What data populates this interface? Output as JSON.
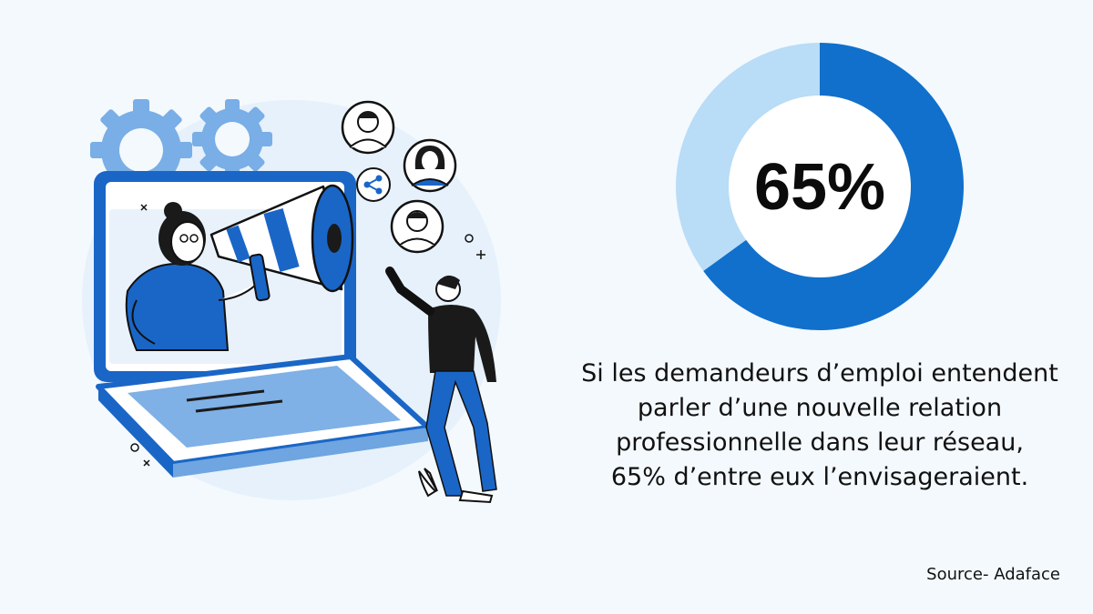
{
  "chart_data": {
    "type": "pie",
    "categories": [
      "65%",
      ""
    ],
    "values": [
      65,
      35
    ],
    "center_label": "65%",
    "colors": [
      "#1070cc",
      "#b9dcf7"
    ],
    "hole": "donut"
  },
  "caption": {
    "lines": [
      "Si  les demandeurs d’emploi entendent",
      "parler d’une nouvelle relation",
      "professionnelle dans leur réseau,",
      "65% d’entre eux l’envisageraient."
    ]
  },
  "source": "Source- Adaface",
  "colors": {
    "background": "#f4f9fd",
    "primary_blue": "#1070cc",
    "light_blue": "#b9dcf7",
    "mid_blue": "#6fa5e0"
  },
  "illustration": {
    "icons": [
      "gear-icon",
      "megaphone-icon",
      "share-icon",
      "user-avatar-icon",
      "laptop-icon"
    ]
  }
}
